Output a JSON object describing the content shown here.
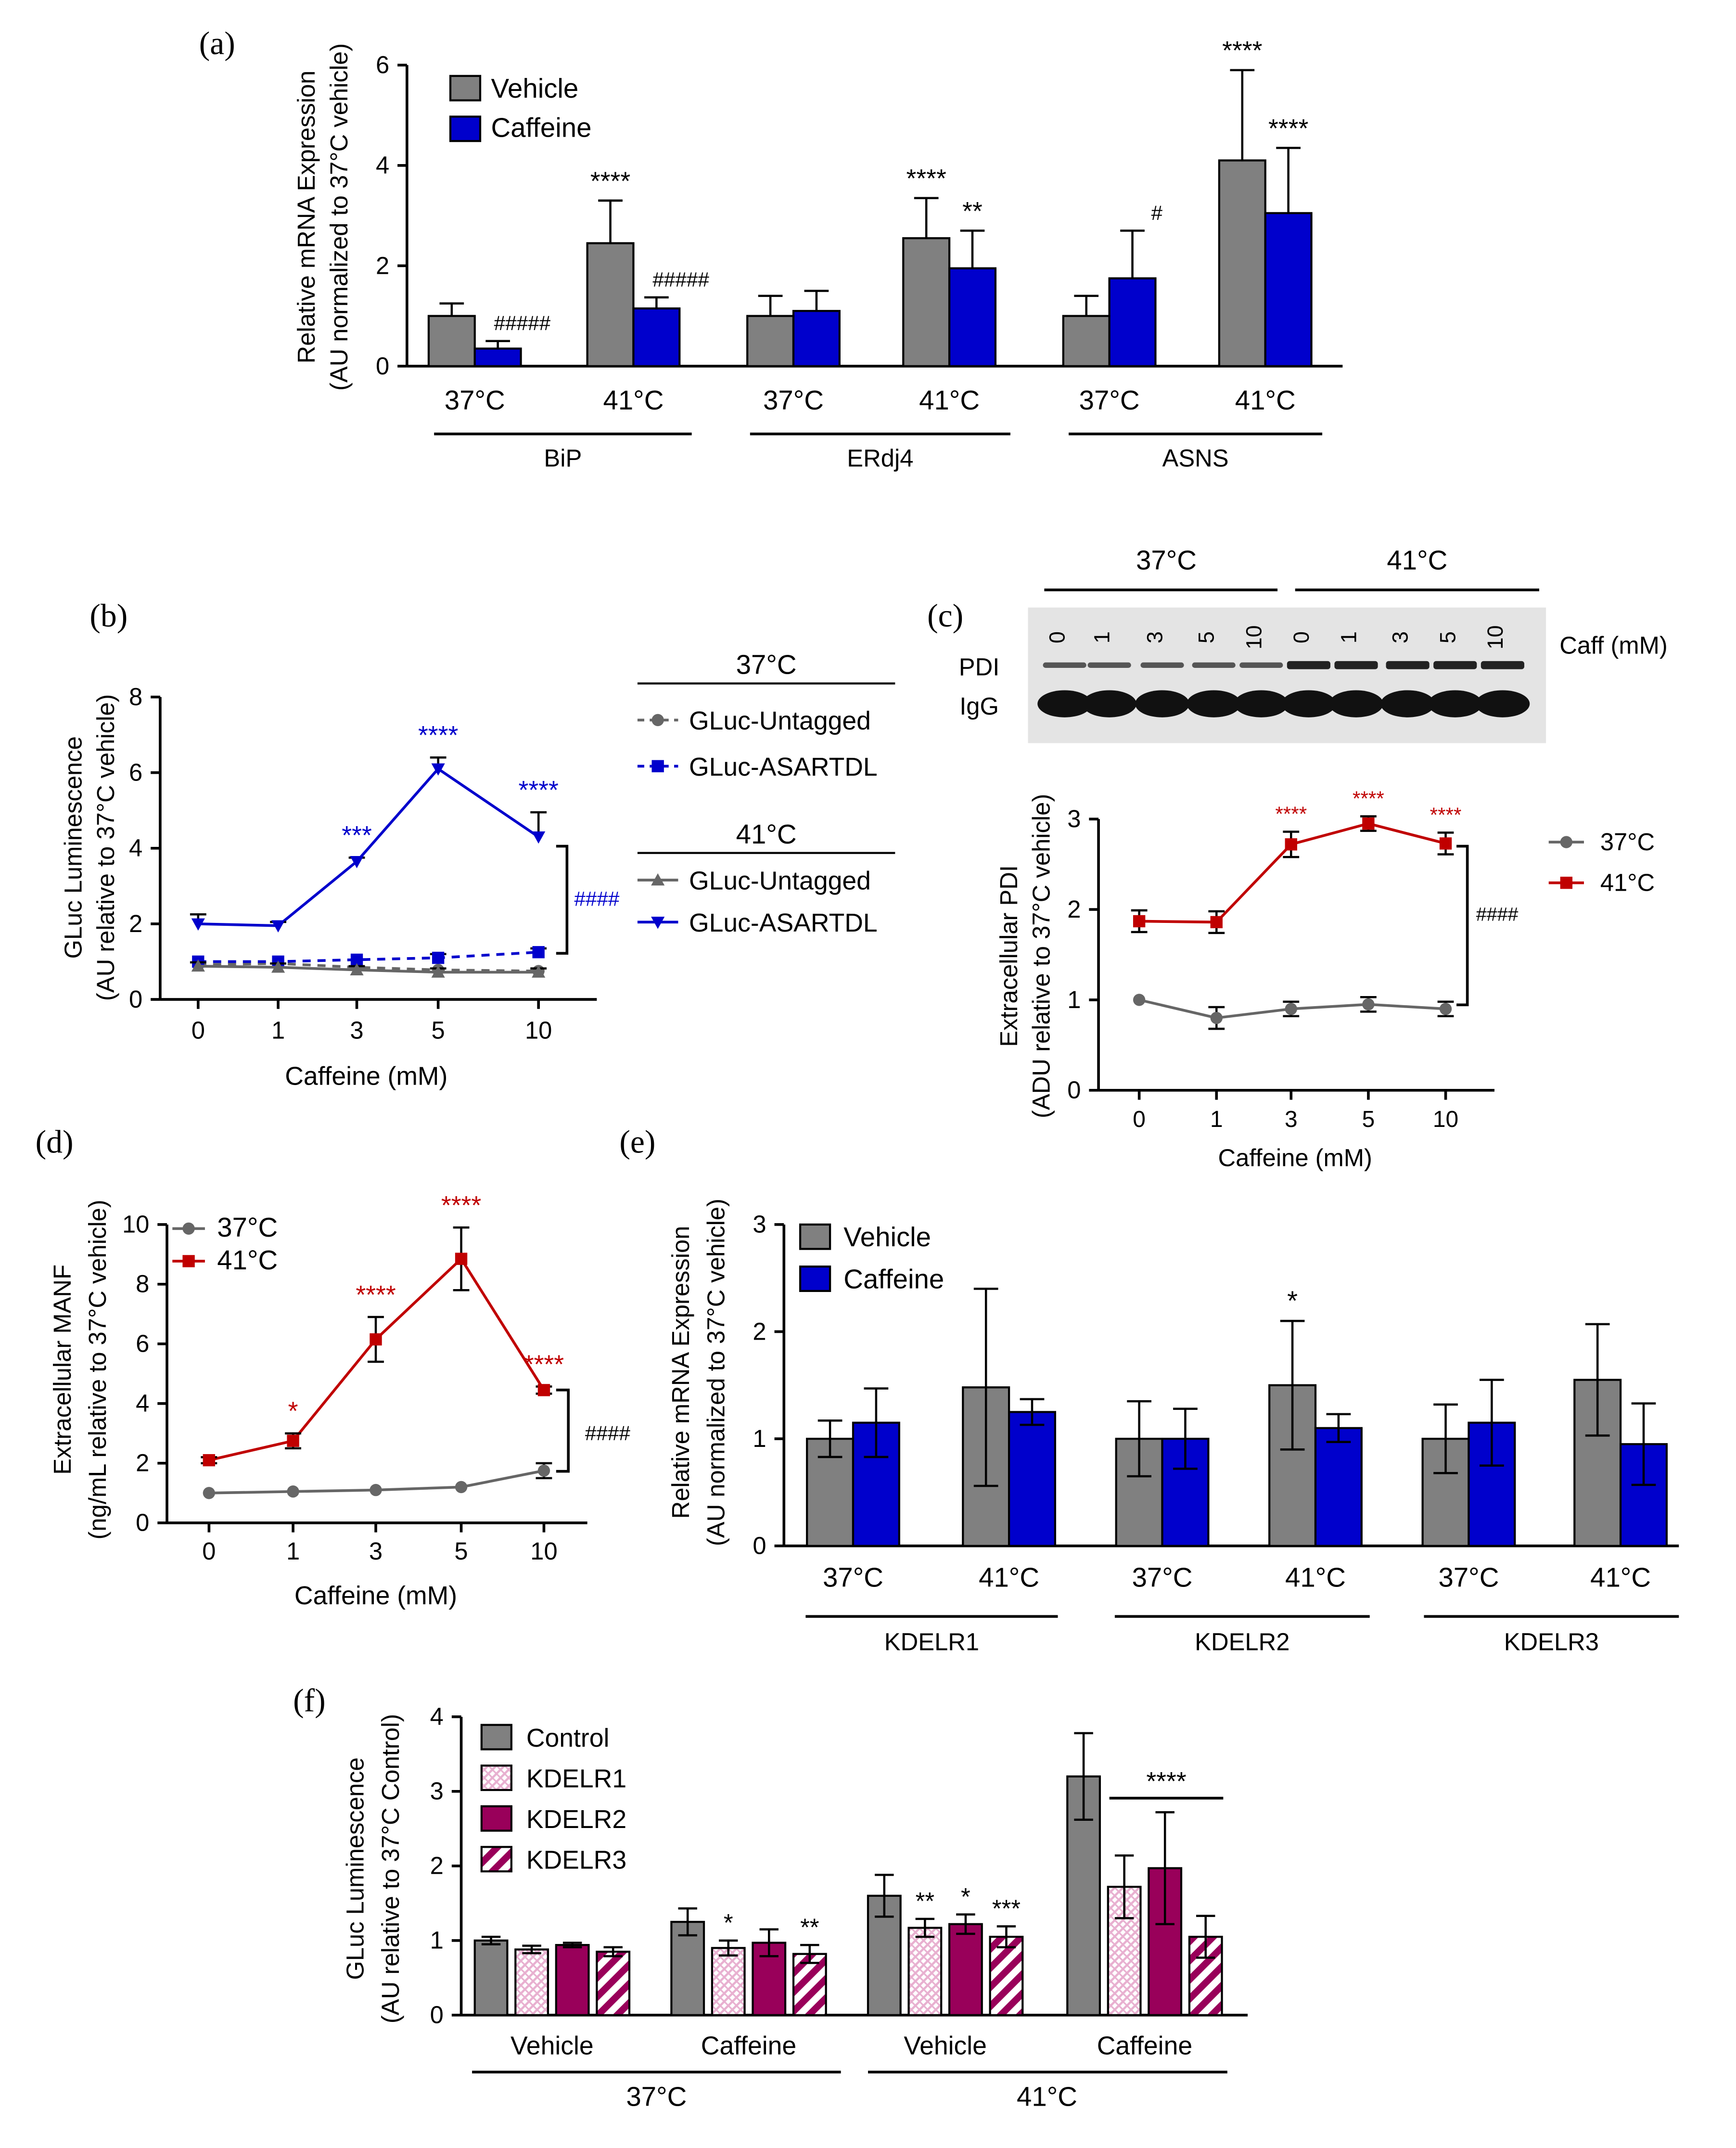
{
  "colors": {
    "grey": "#808080",
    "blue": "#0000CC",
    "red": "#C00000",
    "darkgrey": "#666666",
    "magenta": "#99005A",
    "pink": "#E8B0D0"
  },
  "chart_data": [
    {
      "panel": "(a)",
      "type": "bar",
      "ylabel": [
        "Relative mRNA Expression",
        "(AU normalized to 37°C vehicle)"
      ],
      "ylim": [
        0,
        6
      ],
      "yticks": [
        "0",
        "2",
        "4",
        "6"
      ],
      "legend": [
        "Vehicle",
        "Caffeine"
      ],
      "categories": [
        "37°C",
        "41°C",
        "37°C",
        "41°C",
        "37°C",
        "41°C"
      ],
      "groups": [
        "BiP",
        "ERdj4",
        "ASNS"
      ],
      "series": [
        {
          "name": "Vehicle",
          "values": [
            1.0,
            2.45,
            1.0,
            2.55,
            1.0,
            4.1
          ],
          "err": [
            0.25,
            0.85,
            0.4,
            0.8,
            0.4,
            1.8
          ],
          "annot": [
            "",
            "****",
            "",
            "****",
            "",
            "****"
          ]
        },
        {
          "name": "Caffeine",
          "values": [
            0.35,
            1.15,
            1.1,
            1.95,
            1.75,
            3.05
          ],
          "err": [
            0.15,
            0.22,
            0.4,
            0.75,
            0.95,
            1.3
          ],
          "annot": [
            "#####",
            "#####",
            "",
            "**",
            "#",
            "****"
          ]
        }
      ]
    },
    {
      "panel": "(b)",
      "type": "line",
      "ylabel": [
        "GLuc Luminescence",
        "(AU relative to 37°C vehicle)"
      ],
      "xlabel": "Caffeine (mM)",
      "x": [
        "0",
        "1",
        "3",
        "5",
        "10"
      ],
      "ylim": [
        0,
        8
      ],
      "yticks": [
        "0",
        "2",
        "4",
        "6",
        "8"
      ],
      "legend_headers": [
        "37°C",
        "41°C"
      ],
      "series": [
        {
          "name": "GLuc-Untagged",
          "temp": "37°C",
          "values": [
            0.92,
            0.95,
            0.85,
            0.78,
            0.75
          ],
          "err": [
            0,
            0,
            0,
            0,
            0
          ]
        },
        {
          "name": "GLuc-ASARTDL",
          "temp": "37°C",
          "values": [
            1.0,
            1.0,
            1.05,
            1.1,
            1.25
          ],
          "err": [
            0,
            0,
            0,
            0.1,
            0.1
          ]
        },
        {
          "name": "GLuc-Untagged",
          "temp": "41°C",
          "values": [
            0.88,
            0.85,
            0.78,
            0.72,
            0.72
          ],
          "err": [
            0.1,
            0.1,
            0.1,
            0.1,
            0.1
          ]
        },
        {
          "name": "GLuc-ASARTDL",
          "temp": "41°C",
          "values": [
            2.0,
            1.95,
            3.65,
            6.1,
            4.3
          ],
          "err": [
            0.25,
            0.1,
            0.1,
            0.3,
            0.65
          ]
        }
      ],
      "annot": [
        "",
        "",
        "***",
        "****",
        "****"
      ],
      "bracket": "####"
    },
    {
      "panel": "(c)",
      "type": "line",
      "blot": {
        "temps": [
          "37°C",
          "41°C"
        ],
        "lanes": [
          "0",
          "1",
          "3",
          "5",
          "10",
          "0",
          "1",
          "3",
          "5",
          "10"
        ],
        "unit": "Caff (mM)",
        "bands": [
          "PDI",
          "IgG"
        ]
      },
      "ylabel": [
        "Extracellular PDI",
        "(ADU relative to 37°C vehicle)"
      ],
      "xlabel": "Caffeine (mM)",
      "x": [
        "0",
        "1",
        "3",
        "5",
        "10"
      ],
      "ylim": [
        0,
        3
      ],
      "yticks": [
        "0",
        "1",
        "2",
        "3"
      ],
      "series": [
        {
          "name": "37°C",
          "values": [
            1.0,
            0.8,
            0.9,
            0.95,
            0.9
          ],
          "err": [
            0,
            0.12,
            0.08,
            0.08,
            0.08
          ]
        },
        {
          "name": "41°C",
          "values": [
            1.87,
            1.86,
            2.72,
            2.95,
            2.73
          ],
          "err": [
            0.12,
            0.12,
            0.14,
            0.08,
            0.12
          ]
        }
      ],
      "annot": [
        "",
        "",
        "****",
        "****",
        "****"
      ],
      "bracket": "####"
    },
    {
      "panel": "(d)",
      "type": "line",
      "ylabel": [
        "Extracellular MANF",
        "(ng/mL relative to 37°C vehicle)"
      ],
      "xlabel": "Caffeine (mM)",
      "x": [
        "0",
        "1",
        "3",
        "5",
        "10"
      ],
      "ylim": [
        0,
        10
      ],
      "yticks": [
        "0",
        "2",
        "4",
        "6",
        "8",
        "10"
      ],
      "series": [
        {
          "name": "37°C",
          "values": [
            1.0,
            1.05,
            1.1,
            1.2,
            1.75
          ],
          "err": [
            0,
            0,
            0,
            0,
            0.25
          ]
        },
        {
          "name": "41°C",
          "values": [
            2.1,
            2.75,
            6.15,
            8.85,
            4.45
          ],
          "err": [
            0.1,
            0.25,
            0.75,
            1.05,
            0.12
          ]
        }
      ],
      "annot": [
        "",
        "*",
        "****",
        "****",
        "****"
      ],
      "bracket": "####"
    },
    {
      "panel": "(e)",
      "type": "bar",
      "ylabel": [
        "Relative mRNA Expression",
        "(AU normalized to 37°C vehicle)"
      ],
      "ylim": [
        0,
        3
      ],
      "yticks": [
        "0",
        "1",
        "2",
        "3"
      ],
      "legend": [
        "Vehicle",
        "Caffeine"
      ],
      "categories": [
        "37°C",
        "41°C",
        "37°C",
        "41°C",
        "37°C",
        "41°C"
      ],
      "groups": [
        "KDELR1",
        "KDELR2",
        "KDELR3"
      ],
      "series": [
        {
          "name": "Vehicle",
          "values": [
            1.0,
            1.48,
            1.0,
            1.5,
            1.0,
            1.55
          ],
          "err": [
            0.17,
            0.92,
            0.35,
            0.6,
            0.32,
            0.52
          ],
          "annot": [
            "",
            "",
            "",
            "*",
            "",
            ""
          ]
        },
        {
          "name": "Caffeine",
          "values": [
            1.15,
            1.25,
            1.0,
            1.1,
            1.15,
            0.95
          ],
          "err": [
            0.32,
            0.12,
            0.28,
            0.13,
            0.4,
            0.38
          ],
          "annot": [
            "",
            "",
            "",
            "",
            "",
            ""
          ]
        }
      ]
    },
    {
      "panel": "(f)",
      "type": "bar",
      "ylabel": [
        "GLuc Luminescence",
        "(AU relative to 37°C Control)"
      ],
      "ylim": [
        0,
        4
      ],
      "yticks": [
        "0",
        "1",
        "2",
        "3",
        "4"
      ],
      "legend": [
        "Control",
        "KDELR1",
        "KDELR2",
        "KDELR3"
      ],
      "categories": [
        "Vehicle",
        "Caffeine",
        "Vehicle",
        "Caffeine"
      ],
      "groups": [
        "37°C",
        "41°C"
      ],
      "series": [
        {
          "name": "Control",
          "values": [
            1.0,
            1.25,
            1.6,
            3.2
          ],
          "err": [
            0.05,
            0.18,
            0.28,
            0.58
          ],
          "annot": [
            "",
            "",
            "",
            ""
          ]
        },
        {
          "name": "KDELR1",
          "values": [
            0.88,
            0.9,
            1.17,
            1.72
          ],
          "err": [
            0.05,
            0.1,
            0.12,
            0.42
          ],
          "annot": [
            "",
            "*",
            "**",
            ""
          ]
        },
        {
          "name": "KDELR2",
          "values": [
            0.94,
            0.97,
            1.22,
            1.97
          ],
          "err": [
            0.03,
            0.18,
            0.13,
            0.75
          ],
          "annot": [
            "",
            "",
            "*",
            ""
          ]
        },
        {
          "name": "KDELR3",
          "values": [
            0.85,
            0.82,
            1.05,
            1.05
          ],
          "err": [
            0.06,
            0.12,
            0.14,
            0.28
          ],
          "annot": [
            "",
            "**",
            "***",
            ""
          ]
        }
      ],
      "bar_label": "****"
    }
  ]
}
